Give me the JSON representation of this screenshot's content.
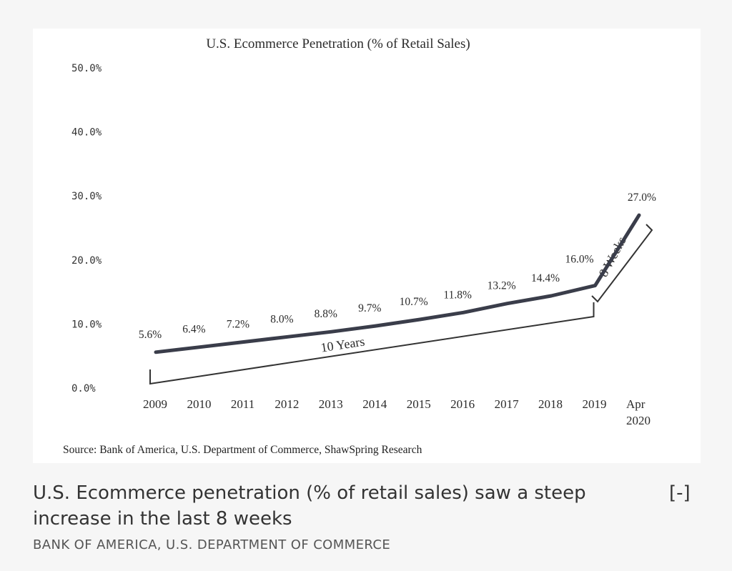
{
  "chart_data": {
    "type": "line",
    "title": "U.S. Ecommerce  Penetration  (% of Retail  Sales)",
    "categories": [
      "2009",
      "2010",
      "2011",
      "2012",
      "2013",
      "2014",
      "2015",
      "2016",
      "2017",
      "2018",
      "2019",
      "Apr 2020"
    ],
    "category_lines": [
      [
        "2009"
      ],
      [
        "2010"
      ],
      [
        "2011"
      ],
      [
        "2012"
      ],
      [
        "2013"
      ],
      [
        "2014"
      ],
      [
        "2015"
      ],
      [
        "2016"
      ],
      [
        "2017"
      ],
      [
        "2018"
      ],
      [
        "2019"
      ],
      [
        "Apr",
        "2020"
      ]
    ],
    "values": [
      5.6,
      6.4,
      7.2,
      8.0,
      8.8,
      9.7,
      10.7,
      11.8,
      13.2,
      14.4,
      16.0,
      27.0
    ],
    "data_labels": [
      "5.6%",
      "6.4%",
      "7.2%",
      "8.0%",
      "8.8%",
      "9.7%",
      "10.7%",
      "11.8%",
      "13.2%",
      "14.4%",
      "16.0%",
      "27.0%"
    ],
    "y_ticks": [
      0,
      10,
      20,
      30,
      40,
      50
    ],
    "y_tick_labels": [
      "0.0%",
      "10.0%",
      "20.0%",
      "30.0%",
      "40.0%",
      "50.0%"
    ],
    "ylim": [
      0,
      50
    ],
    "grid": false,
    "annotations": [
      {
        "text": "10 Years",
        "from": "2009",
        "to": "2019"
      },
      {
        "text": "8 Weeks",
        "from": "2019",
        "to": "Apr 2020"
      }
    ],
    "source": "Source: Bank of America, U.S. Department of Commerce, ShawSpring Research",
    "line_color": "#3a3d4a"
  },
  "caption": {
    "text": "U.S. Ecommerce penetration (% of retail sales) saw a steep increase in the last 8 weeks",
    "toggle_label": "[-]",
    "credit": "BANK OF AMERICA, U.S. DEPARTMENT OF COMMERCE"
  }
}
